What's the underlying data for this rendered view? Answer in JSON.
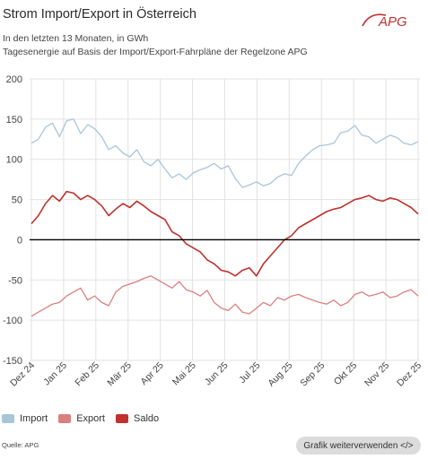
{
  "header": {
    "title": "Strom Import/Export in Österreich",
    "subtitle_line1": "In den letzten 13 Monaten, in GWh",
    "subtitle_line2": "Tagesenergie auf Basis der Import/Export-Fahrpläne der Regelzone APG",
    "logo_text": "APG"
  },
  "colors": {
    "import": "#a9c6d9",
    "export": "#d9807e",
    "saldo": "#c0312f",
    "grid": "#e2e2e2",
    "zero_line": "#000000",
    "axis_text": "#444444",
    "logo": "#c0312f"
  },
  "chart_data": {
    "type": "line",
    "ylim": [
      -150,
      200
    ],
    "yticks": [
      -150,
      -100,
      -50,
      0,
      50,
      100,
      150,
      200
    ],
    "ytick_labels": [
      "-150",
      "-100",
      "-50",
      "0",
      "50",
      "100",
      "150",
      "200"
    ],
    "xtick_labels": [
      "Dez 24",
      "Jan 25",
      "Feb 25",
      "Mär 25",
      "Apr 25",
      "Mai 25",
      "Jun 25",
      "Jul 25",
      "Aug 25",
      "Sep 25",
      "Okt 25",
      "Nov 25",
      "Dez 25"
    ],
    "x_unit": "month",
    "series": [
      {
        "name": "Import",
        "color_key": "import",
        "values": [
          120,
          125,
          140,
          145,
          128,
          148,
          150,
          132,
          143,
          138,
          128,
          112,
          117,
          108,
          103,
          112,
          97,
          92,
          100,
          88,
          77,
          82,
          75,
          83,
          87,
          90,
          95,
          88,
          92,
          76,
          65,
          68,
          72,
          67,
          70,
          78,
          82,
          80,
          95,
          104,
          112,
          117,
          118,
          120,
          133,
          135,
          142,
          130,
          128,
          120,
          125,
          130,
          127,
          120,
          118,
          122
        ]
      },
      {
        "name": "Export",
        "color_key": "export",
        "values": [
          -95,
          -90,
          -85,
          -80,
          -78,
          -70,
          -65,
          -60,
          -75,
          -70,
          -78,
          -82,
          -65,
          -58,
          -55,
          -52,
          -48,
          -45,
          -50,
          -55,
          -60,
          -52,
          -62,
          -65,
          -70,
          -63,
          -78,
          -85,
          -88,
          -80,
          -90,
          -92,
          -85,
          -78,
          -82,
          -72,
          -75,
          -70,
          -68,
          -72,
          -75,
          -78,
          -80,
          -75,
          -82,
          -78,
          -68,
          -65,
          -70,
          -68,
          -65,
          -72,
          -70,
          -65,
          -62,
          -70
        ]
      },
      {
        "name": "Saldo",
        "color_key": "saldo",
        "values": [
          20,
          30,
          45,
          55,
          48,
          60,
          58,
          50,
          55,
          50,
          42,
          30,
          38,
          45,
          40,
          48,
          42,
          35,
          30,
          25,
          10,
          5,
          -5,
          -10,
          -15,
          -25,
          -30,
          -38,
          -40,
          -45,
          -38,
          -35,
          -45,
          -30,
          -20,
          -10,
          0,
          5,
          15,
          20,
          25,
          30,
          35,
          38,
          40,
          45,
          50,
          52,
          55,
          50,
          48,
          52,
          50,
          45,
          40,
          32
        ]
      }
    ]
  },
  "legend": {
    "items": [
      {
        "label": "Import",
        "color_key": "import"
      },
      {
        "label": "Export",
        "color_key": "export"
      },
      {
        "label": "Saldo",
        "color_key": "saldo"
      }
    ]
  },
  "footer": {
    "source": "Quelle: APG",
    "reuse_button": "Grafik weiterverwenden </>"
  }
}
